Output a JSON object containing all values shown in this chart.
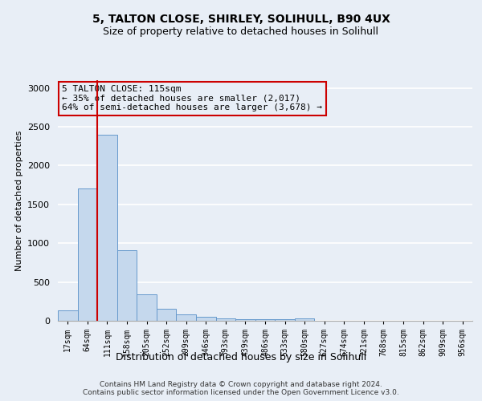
{
  "title1": "5, TALTON CLOSE, SHIRLEY, SOLIHULL, B90 4UX",
  "title2": "Size of property relative to detached houses in Solihull",
  "xlabel": "Distribution of detached houses by size in Solihull",
  "ylabel": "Number of detached properties",
  "bar_labels": [
    "17sqm",
    "64sqm",
    "111sqm",
    "158sqm",
    "205sqm",
    "252sqm",
    "299sqm",
    "346sqm",
    "393sqm",
    "439sqm",
    "486sqm",
    "533sqm",
    "580sqm",
    "627sqm",
    "674sqm",
    "721sqm",
    "768sqm",
    "815sqm",
    "862sqm",
    "909sqm",
    "956sqm"
  ],
  "bar_values": [
    130,
    1700,
    2400,
    910,
    345,
    155,
    80,
    50,
    35,
    25,
    20,
    18,
    30,
    0,
    0,
    0,
    0,
    0,
    0,
    0,
    0
  ],
  "bar_color": "#c5d8ed",
  "bar_edgecolor": "#6699cc",
  "vline_index": 2,
  "vline_color": "#cc0000",
  "ylim": [
    0,
    3100
  ],
  "yticks": [
    0,
    500,
    1000,
    1500,
    2000,
    2500,
    3000
  ],
  "annotation_title": "5 TALTON CLOSE: 115sqm",
  "annotation_line1": "← 35% of detached houses are smaller (2,017)",
  "annotation_line2": "64% of semi-detached houses are larger (3,678) →",
  "annotation_box_edgecolor": "#cc0000",
  "footer1": "Contains HM Land Registry data © Crown copyright and database right 2024.",
  "footer2": "Contains public sector information licensed under the Open Government Licence v3.0.",
  "background_color": "#e8eef6",
  "grid_color": "#ffffff"
}
